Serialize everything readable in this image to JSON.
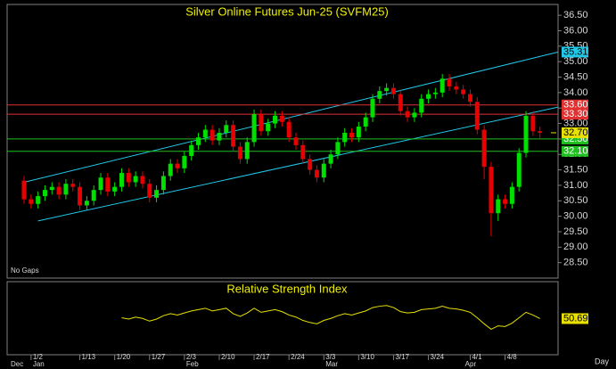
{
  "chart_data": {
    "type": "candlestick",
    "title": "Silver Online Futures Jun-25 (SVFM25)",
    "categories": [
      null,
      "1/2",
      null,
      null,
      null,
      null,
      null,
      null,
      "1/13",
      null,
      null,
      null,
      null,
      "1/20",
      null,
      null,
      null,
      null,
      "1/27",
      null,
      null,
      null,
      null,
      "2/3",
      null,
      null,
      null,
      null,
      "2/10",
      null,
      null,
      null,
      null,
      "2/17",
      null,
      null,
      null,
      null,
      "2/24",
      null,
      null,
      null,
      null,
      "3/3",
      null,
      null,
      null,
      null,
      "3/10",
      null,
      null,
      null,
      null,
      "3/17",
      null,
      null,
      null,
      null,
      "3/24",
      null,
      null,
      null,
      null,
      null,
      "4/1",
      null,
      null,
      null,
      null,
      "4/8",
      null,
      null,
      null,
      null,
      null
    ],
    "month_categories": [
      "Dec",
      "Jan",
      null,
      null,
      null,
      null,
      null,
      null,
      null,
      null,
      null,
      null,
      null,
      null,
      null,
      null,
      null,
      null,
      null,
      null,
      null,
      null,
      null,
      "Feb",
      null,
      null,
      null,
      null,
      null,
      null,
      null,
      null,
      null,
      null,
      null,
      null,
      null,
      null,
      null,
      null,
      null,
      null,
      null,
      "Mar",
      null,
      null,
      null,
      null,
      null,
      null,
      null,
      null,
      null,
      null,
      null,
      null,
      null,
      null,
      null,
      null,
      null,
      null,
      null,
      "Apr",
      null,
      null,
      null,
      null,
      null,
      null,
      null,
      null,
      null,
      null
    ],
    "open": [
      31.15,
      30.55,
      30.4,
      30.65,
      30.85,
      30.95,
      30.7,
      31.05,
      30.95,
      30.35,
      30.5,
      30.85,
      31.25,
      30.8,
      30.95,
      31.4,
      31.1,
      31.3,
      31.05,
      30.6,
      30.85,
      31.3,
      31.7,
      31.55,
      31.95,
      32.3,
      32.55,
      32.8,
      32.45,
      32.7,
      32.95,
      32.25,
      31.85,
      32.4,
      33.3,
      32.75,
      33.0,
      33.25,
      33.05,
      32.55,
      32.3,
      31.85,
      31.5,
      31.25,
      31.7,
      32.0,
      32.4,
      32.7,
      32.55,
      32.9,
      33.2,
      33.8,
      34.05,
      34.15,
      33.95,
      33.4,
      33.2,
      33.35,
      33.8,
      33.95,
      34.0,
      34.45,
      34.2,
      34.1,
      33.95,
      33.7,
      32.8,
      31.6,
      30.1,
      30.55,
      30.4,
      30.95,
      32.05,
      33.25,
      32.75
    ],
    "high": [
      31.3,
      30.7,
      30.8,
      31.0,
      31.1,
      31.1,
      31.2,
      31.2,
      31.1,
      30.65,
      31.0,
      31.4,
      31.4,
      31.1,
      31.55,
      31.55,
      31.45,
      31.45,
      31.2,
      31.0,
      31.45,
      31.85,
      31.85,
      32.1,
      32.45,
      32.7,
      32.95,
      32.95,
      32.85,
      33.1,
      33.1,
      32.4,
      32.55,
      33.45,
      33.45,
      33.15,
      33.4,
      33.4,
      33.2,
      32.7,
      32.45,
      32.0,
      31.65,
      31.85,
      32.15,
      32.55,
      32.85,
      32.85,
      33.05,
      33.35,
      33.95,
      34.2,
      34.3,
      34.3,
      34.1,
      33.55,
      33.5,
      33.95,
      34.1,
      34.15,
      34.6,
      34.6,
      34.35,
      34.25,
      34.1,
      33.85,
      32.95,
      31.75,
      30.7,
      30.7,
      31.1,
      32.2,
      33.4,
      33.4,
      32.9
    ],
    "low": [
      30.4,
      30.25,
      30.25,
      30.5,
      30.7,
      30.55,
      30.55,
      30.8,
      30.2,
      30.2,
      30.35,
      30.7,
      30.65,
      30.65,
      30.8,
      30.95,
      30.95,
      30.9,
      30.45,
      30.45,
      30.7,
      31.15,
      31.4,
      31.4,
      31.8,
      32.15,
      32.4,
      32.3,
      32.3,
      32.55,
      32.1,
      31.7,
      31.7,
      32.25,
      32.6,
      32.6,
      32.85,
      32.9,
      32.4,
      32.15,
      31.7,
      31.35,
      31.1,
      31.1,
      31.55,
      31.85,
      32.25,
      32.4,
      32.4,
      32.75,
      33.05,
      33.65,
      33.9,
      33.8,
      33.25,
      33.05,
      33.05,
      33.2,
      33.65,
      33.8,
      33.85,
      34.05,
      33.95,
      33.8,
      33.55,
      32.65,
      31.2,
      29.35,
      29.85,
      30.25,
      30.25,
      30.8,
      31.9,
      32.6,
      32.5
    ],
    "close": [
      30.55,
      30.4,
      30.65,
      30.85,
      30.95,
      30.7,
      31.05,
      30.95,
      30.35,
      30.5,
      30.85,
      31.25,
      30.8,
      30.95,
      31.4,
      31.1,
      31.3,
      31.05,
      30.6,
      30.85,
      31.3,
      31.7,
      31.55,
      31.95,
      32.3,
      32.55,
      32.8,
      32.45,
      32.7,
      32.95,
      32.25,
      31.85,
      32.4,
      33.3,
      32.75,
      33.0,
      33.25,
      33.05,
      32.55,
      32.3,
      31.85,
      31.5,
      31.25,
      31.7,
      32.0,
      32.4,
      32.7,
      32.55,
      32.9,
      33.2,
      33.8,
      34.05,
      34.15,
      33.95,
      33.4,
      33.2,
      33.35,
      33.8,
      33.95,
      34.0,
      34.45,
      34.2,
      34.1,
      33.95,
      33.7,
      32.8,
      31.6,
      30.1,
      30.55,
      30.4,
      30.95,
      32.05,
      33.25,
      32.75,
      32.7
    ],
    "up_color": "#00e000",
    "down_color": "#e80000",
    "ylim": [
      28.0,
      36.85
    ],
    "yticks": [
      {
        "value": 28.5,
        "label": "28.50"
      },
      {
        "value": 29,
        "label": "29.00"
      },
      {
        "value": 29.5,
        "label": "29.50"
      },
      {
        "value": 30,
        "label": "30.00"
      },
      {
        "value": 30.5,
        "label": "30.50"
      },
      {
        "value": 31,
        "label": "31.00"
      },
      {
        "value": 31.5,
        "label": "31.50"
      },
      {
        "value": 32,
        "label": "32.00"
      },
      {
        "value": 32.5,
        "label": "32.50"
      },
      {
        "value": 33,
        "label": "33.00"
      },
      {
        "value": 33.5,
        "label": "33.50"
      },
      {
        "value": 34,
        "label": "34.00"
      },
      {
        "value": 34.5,
        "label": "34.50"
      },
      {
        "value": 35,
        "label": "35.00"
      },
      {
        "value": 35.5,
        "label": "35.50"
      },
      {
        "value": 36,
        "label": "36.00"
      },
      {
        "value": 36.5,
        "label": "36.50"
      }
    ],
    "levels": [
      {
        "value": 33.6,
        "label": "33.60",
        "color": "#e03030"
      },
      {
        "value": 33.3,
        "label": "33.30",
        "color": "#e03030"
      },
      {
        "value": 32.5,
        "label": "32.50",
        "color": "#20c020"
      },
      {
        "value": 32.1,
        "label": "32.10",
        "color": "#20c020"
      }
    ],
    "trendlines": [
      {
        "start_index": 0,
        "start": 31.1,
        "end": 35.31,
        "color": "#20c8e8"
      },
      {
        "start_index": 2,
        "start": 29.85,
        "end": 33.53,
        "color": "#20c8e8"
      }
    ],
    "last_price": {
      "value": 32.7,
      "label": "32.70",
      "color": "#e8e000"
    },
    "note": "No Gaps",
    "x_unit": "Day",
    "rsi": {
      "title": "Relative Strength Index",
      "color": "#e8e000",
      "ylim": [
        0,
        100
      ],
      "last_value": 50.69,
      "values": [
        null,
        null,
        null,
        null,
        null,
        null,
        null,
        null,
        null,
        null,
        null,
        null,
        null,
        null,
        52,
        50,
        53,
        51,
        47,
        50,
        55,
        58,
        56,
        59,
        62,
        64,
        66,
        62,
        64,
        66,
        58,
        54,
        59,
        66,
        60,
        62,
        64,
        61,
        56,
        53,
        48,
        45,
        43,
        48,
        51,
        55,
        58,
        56,
        59,
        62,
        67,
        69,
        70,
        67,
        61,
        59,
        60,
        64,
        65,
        66,
        69,
        66,
        65,
        63,
        60,
        52,
        43,
        35,
        40,
        39,
        44,
        52,
        60,
        56,
        50.69
      ]
    }
  }
}
